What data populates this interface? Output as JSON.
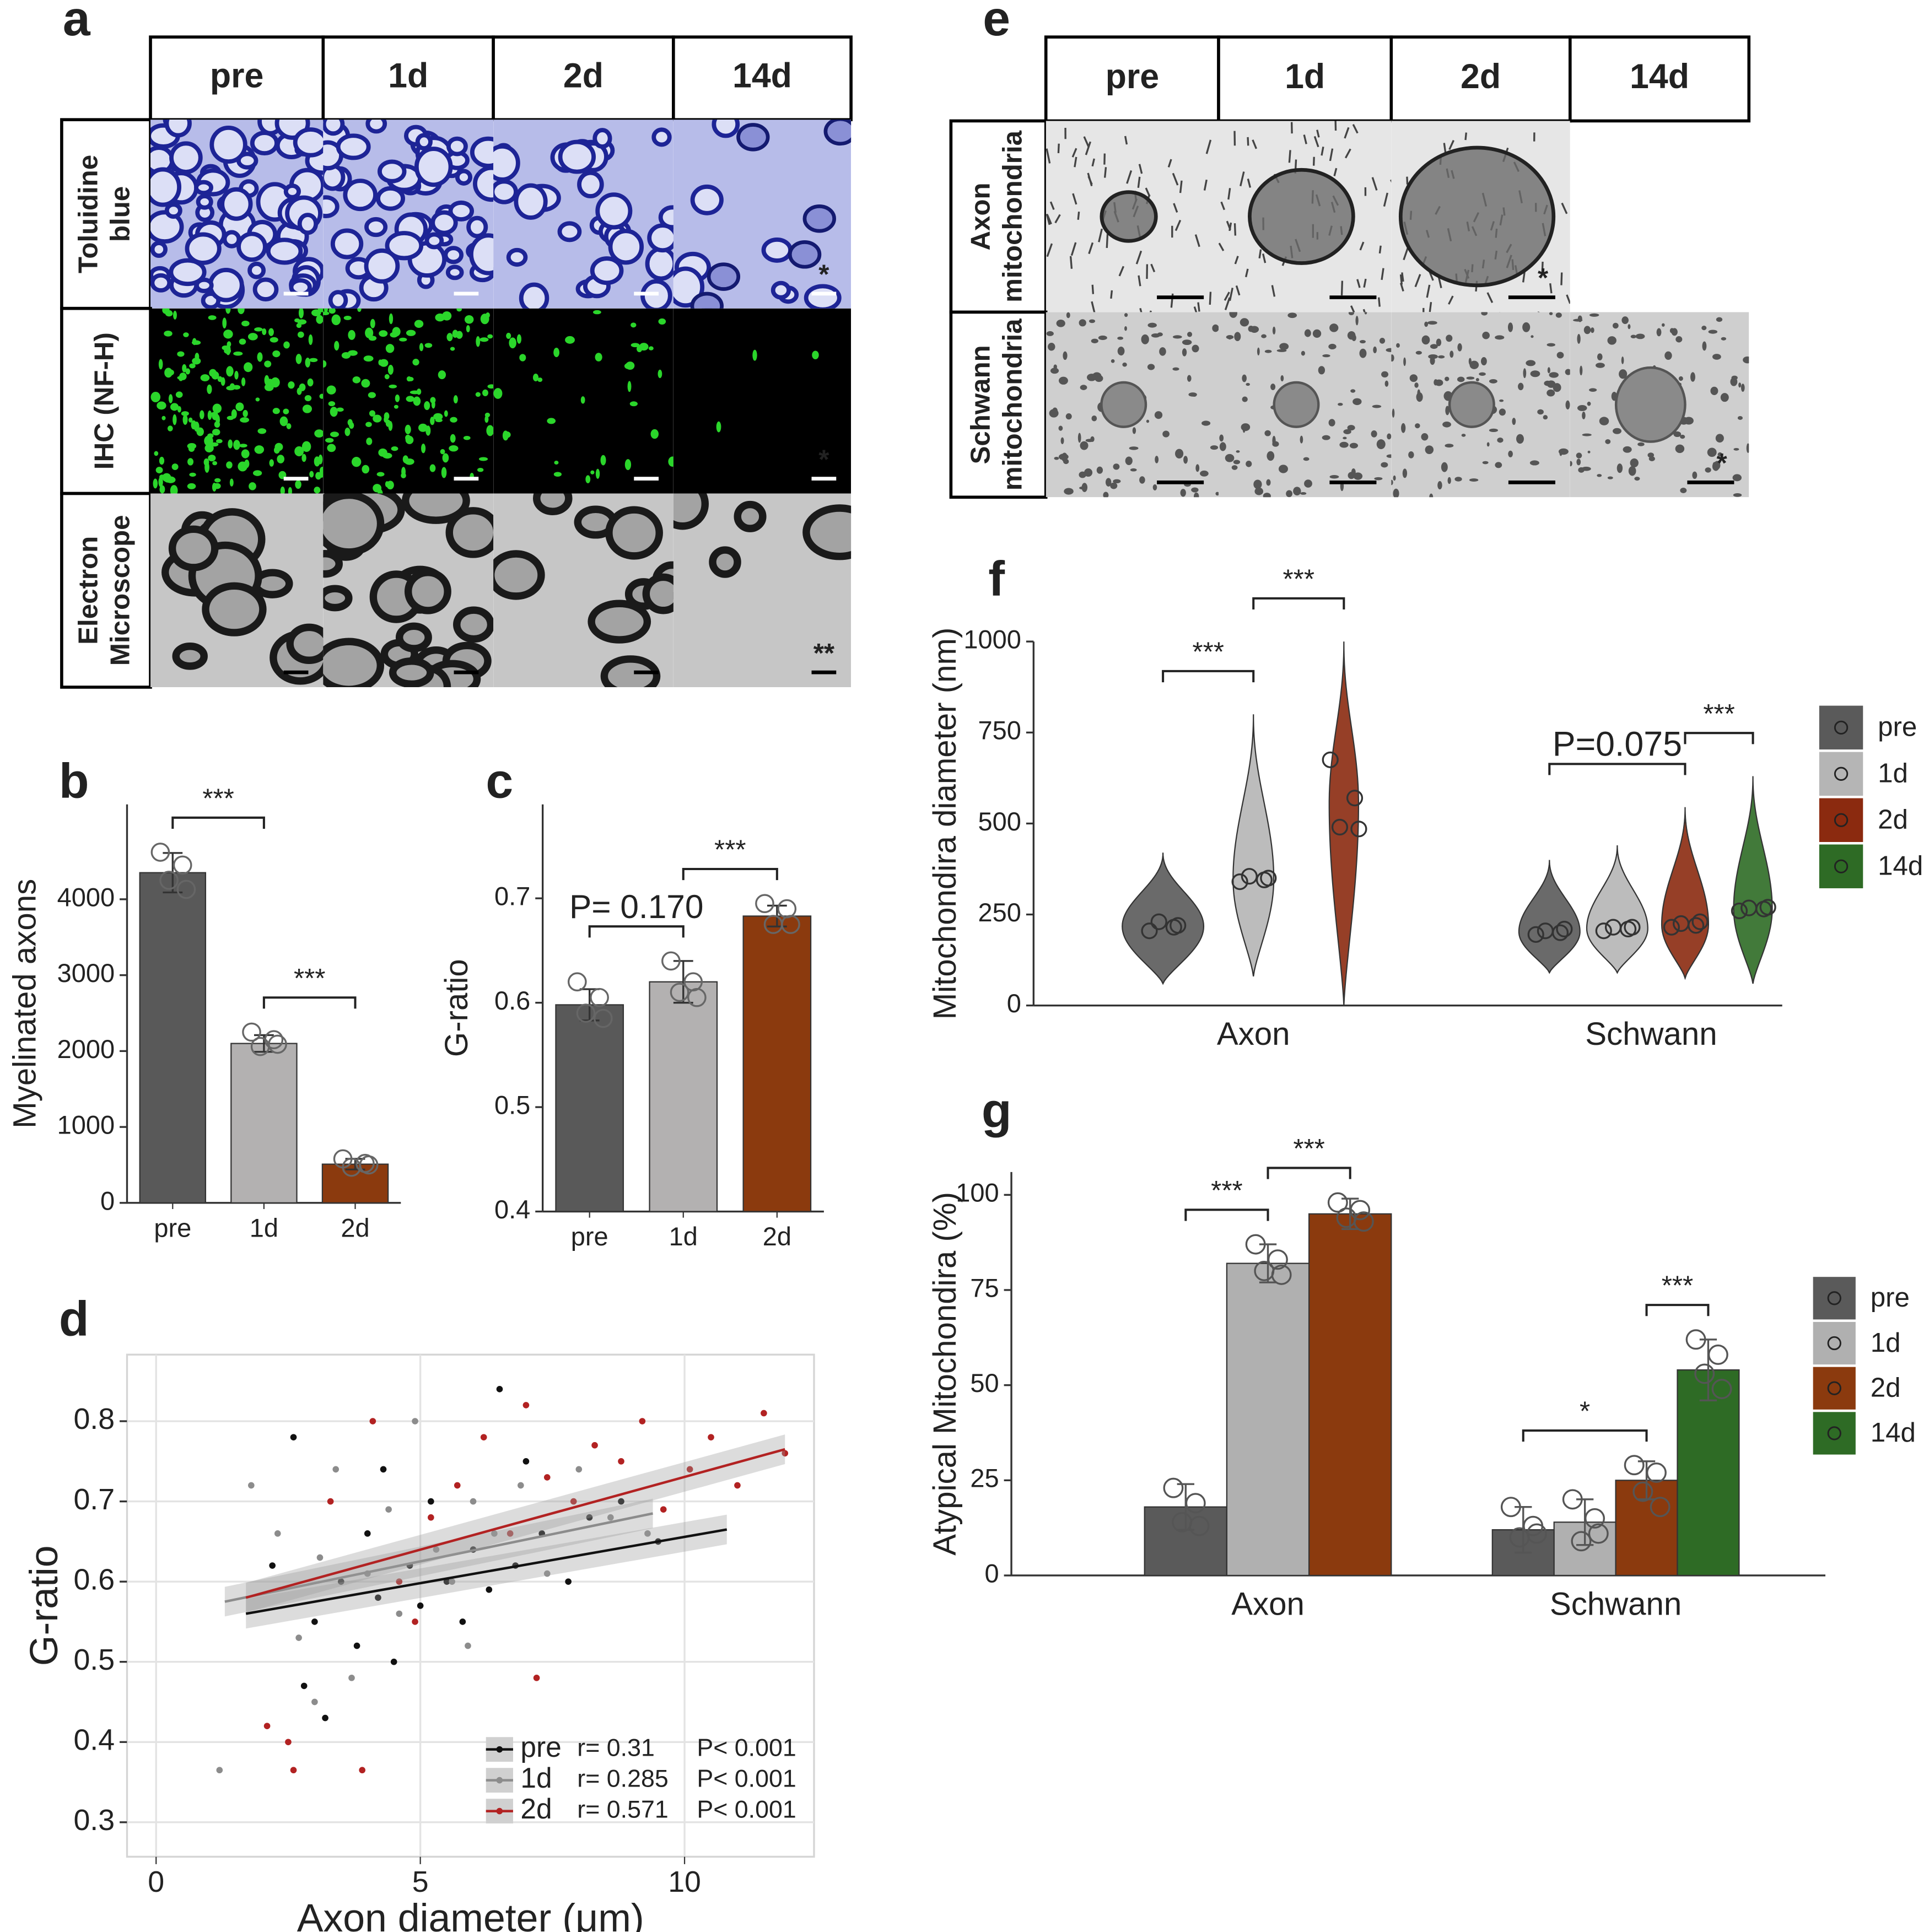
{
  "image_panels": [
    {
      "letter": "a",
      "columns": [
        "pre",
        "1d",
        "2d",
        "14d"
      ],
      "rows": [
        {
          "label": [
            "Toluidine",
            "blue"
          ],
          "marks": [
            null,
            null,
            null,
            "*"
          ]
        },
        {
          "label": [
            "IHC (NF-H)"
          ],
          "marks": [
            null,
            null,
            null,
            "*"
          ]
        },
        {
          "label": [
            "Electron",
            "Microscope"
          ],
          "marks": [
            null,
            null,
            null,
            "**"
          ]
        }
      ]
    },
    {
      "letter": "e",
      "columns": [
        "pre",
        "1d",
        "2d",
        "14d"
      ],
      "rows": [
        {
          "label": [
            "Axon",
            "mitochondria"
          ],
          "marks": [
            null,
            null,
            "*",
            null
          ]
        },
        {
          "label": [
            "Schwann",
            "mitochondria"
          ],
          "marks": [
            null,
            null,
            null,
            "*"
          ]
        }
      ]
    }
  ],
  "chart_data": [
    {
      "letter": "b",
      "type": "bar",
      "ylabel": "Myelinated axons",
      "categories": [
        "pre",
        "1d",
        "2d"
      ],
      "colors": [
        "#595959",
        "#b3b1b1",
        "#8b3a0e"
      ],
      "values": [
        4350,
        2100,
        510
      ],
      "errors": [
        260,
        110,
        70
      ],
      "points": [
        [
          4620,
          4450,
          4250,
          4130
        ],
        [
          2250,
          2150,
          2060,
          2090
        ],
        [
          580,
          520,
          470,
          500
        ]
      ],
      "ylim": [
        0,
        5250
      ],
      "yticks": [
        0,
        1000,
        2000,
        3000,
        4000
      ],
      "comparisons": [
        {
          "between": [
            "pre",
            "1d"
          ],
          "label": "***"
        },
        {
          "between": [
            "1d",
            "2d"
          ],
          "label": "***"
        }
      ]
    },
    {
      "letter": "c",
      "type": "bar",
      "ylabel": "G-ratio",
      "categories": [
        "pre",
        "1d",
        "2d"
      ],
      "colors": [
        "#595959",
        "#b3b1b1",
        "#8b3a0e"
      ],
      "values": [
        0.598,
        0.62,
        0.683
      ],
      "errors": [
        0.015,
        0.02,
        0.01
      ],
      "points": [
        [
          0.62,
          0.605,
          0.59,
          0.585
        ],
        [
          0.64,
          0.62,
          0.61,
          0.605
        ],
        [
          0.695,
          0.69,
          0.675,
          0.675
        ]
      ],
      "ylim": [
        0.4,
        0.79
      ],
      "yticks": [
        0.4,
        0.5,
        0.6,
        0.7
      ],
      "comparisons": [
        {
          "between": [
            "pre",
            "1d"
          ],
          "label": "P= 0.170"
        },
        {
          "between": [
            "1d",
            "2d"
          ],
          "label": "***"
        }
      ]
    },
    {
      "letter": "d",
      "type": "scatter",
      "xlabel": "Axon diameter (μm)",
      "ylabel": "G-ratio",
      "xlim": [
        -0.55,
        12.45
      ],
      "ylim": [
        0.257,
        0.883
      ],
      "xticks": [
        0,
        5,
        10
      ],
      "yticks": [
        0.3,
        0.4,
        0.5,
        0.6,
        0.7,
        0.8
      ],
      "grid": true,
      "series": [
        {
          "name": "pre",
          "color": "#111111",
          "r_label": "r= 0.31",
          "p_label": "P< 0.001",
          "x": [
            2.2,
            2.6,
            3.0,
            3.2,
            3.5,
            3.8,
            4.0,
            4.2,
            4.5,
            4.8,
            5.0,
            5.2,
            5.5,
            5.8,
            6.0,
            6.3,
            6.5,
            6.8,
            7.0,
            7.3,
            7.8,
            8.2,
            8.8,
            9.5,
            2.8,
            4.3
          ],
          "y": [
            0.62,
            0.78,
            0.55,
            0.43,
            0.6,
            0.52,
            0.66,
            0.58,
            0.5,
            0.62,
            0.57,
            0.7,
            0.6,
            0.55,
            0.64,
            0.59,
            0.84,
            0.62,
            0.75,
            0.66,
            0.6,
            0.68,
            0.7,
            0.65,
            0.47,
            0.74
          ],
          "fit_x": [
            1.7,
            10.8
          ],
          "fit_y": [
            0.56,
            0.665
          ]
        },
        {
          "name": "1d",
          "color": "#8c8c8c",
          "r_label": "r= 0.285",
          "p_label": "P< 0.001",
          "x": [
            1.2,
            1.8,
            2.3,
            2.7,
            3.1,
            3.4,
            3.7,
            4.0,
            4.4,
            4.6,
            4.9,
            5.3,
            5.6,
            6.0,
            6.4,
            6.9,
            7.4,
            8.0,
            8.6,
            9.3,
            3.0,
            5.9
          ],
          "y": [
            0.365,
            0.72,
            0.66,
            0.53,
            0.63,
            0.74,
            0.48,
            0.61,
            0.69,
            0.56,
            0.8,
            0.64,
            0.6,
            0.7,
            0.66,
            0.72,
            0.61,
            0.74,
            0.68,
            0.66,
            0.45,
            0.52
          ],
          "fit_x": [
            1.3,
            9.4
          ],
          "fit_y": [
            0.575,
            0.685
          ]
        },
        {
          "name": "2d",
          "color": "#b22222",
          "r_label": "r= 0.571",
          "p_label": "P< 0.001",
          "x": [
            2.1,
            2.5,
            2.6,
            3.3,
            4.1,
            4.6,
            5.2,
            5.7,
            6.2,
            6.7,
            7.0,
            7.4,
            7.9,
            8.3,
            8.8,
            9.2,
            9.6,
            10.1,
            10.5,
            11.0,
            11.5,
            11.9,
            7.2,
            4.9,
            3.9
          ],
          "y": [
            0.42,
            0.4,
            0.365,
            0.7,
            0.8,
            0.6,
            0.68,
            0.72,
            0.78,
            0.66,
            0.82,
            0.73,
            0.7,
            0.77,
            0.75,
            0.8,
            0.69,
            0.74,
            0.78,
            0.72,
            0.81,
            0.76,
            0.48,
            0.55,
            0.365
          ],
          "fit_x": [
            1.7,
            11.9
          ],
          "fit_y": [
            0.58,
            0.765
          ]
        }
      ]
    },
    {
      "letter": "f",
      "type": "violin",
      "ylabel": "Mitochondira diameter (nm)",
      "categories": [
        "Axon",
        "Schwann"
      ],
      "ylim": [
        0,
        1000
      ],
      "yticks": [
        0,
        250,
        500,
        750,
        1000
      ],
      "series": [
        {
          "name": "pre",
          "color": "#5a5a5a",
          "min": [
            60,
            90
          ],
          "max": [
            420,
            400
          ],
          "points": [
            [
              205,
              215,
              230,
              220
            ],
            [
              195,
              200,
              205,
              210
            ]
          ]
        },
        {
          "name": "1d",
          "color": "#b5b5b5",
          "min": [
            80,
            90
          ],
          "max": [
            800,
            440
          ],
          "points": [
            [
              340,
              345,
              355,
              350
            ],
            [
              205,
              210,
              215,
              215
            ]
          ]
        },
        {
          "name": "2d",
          "color": "#8b2a0f",
          "min": [
            0,
            75
          ],
          "max": [
            1000,
            545
          ],
          "points": [
            [
              675,
              570,
              490,
              485
            ],
            [
              215,
              220,
              225,
              230
            ]
          ]
        },
        {
          "name": "14d",
          "color": "#2e6b25",
          "min": [
            null,
            60
          ],
          "max": [
            null,
            630
          ],
          "points": [
            null,
            [
              260,
              265,
              268,
              270
            ]
          ]
        }
      ],
      "comparisons": [
        {
          "group": "Axon",
          "between": [
            "pre",
            "1d"
          ],
          "label": "***"
        },
        {
          "group": "Axon",
          "between": [
            "1d",
            "2d"
          ],
          "label": "***"
        },
        {
          "group": "Schwann",
          "between": [
            "pre",
            "2d"
          ],
          "label": "P=0.075"
        },
        {
          "group": "Schwann",
          "between": [
            "2d",
            "14d"
          ],
          "label": "***"
        }
      ]
    },
    {
      "letter": "g",
      "type": "grouped_bar",
      "ylabel": "Atypical Mitochondira (%)",
      "categories": [
        "Axon",
        "Schwann"
      ],
      "ylim": [
        0,
        106
      ],
      "yticks": [
        0,
        25,
        50,
        75,
        100
      ],
      "series": [
        {
          "name": "pre",
          "color": "#5a5a5a",
          "values": [
            18,
            12
          ],
          "errors": [
            6,
            6
          ],
          "points": [
            [
              23,
              19,
              14,
              13
            ],
            [
              18,
              13,
              10,
              11
            ]
          ]
        },
        {
          "name": "1d",
          "color": "#b0b0b0",
          "values": [
            82,
            14
          ],
          "errors": [
            5,
            6
          ],
          "points": [
            [
              87,
              83,
              80,
              79
            ],
            [
              20,
              15,
              9,
              11
            ]
          ]
        },
        {
          "name": "2d",
          "color": "#8b3a0e",
          "values": [
            95,
            25
          ],
          "errors": [
            4,
            5
          ],
          "points": [
            [
              98,
              96,
              94,
              93
            ],
            [
              29,
              27,
              22,
              18
            ]
          ]
        },
        {
          "name": "14d",
          "color": "#2e6b25",
          "values": [
            null,
            54
          ],
          "errors": [
            null,
            8
          ],
          "points": [
            null,
            [
              62,
              58,
              53,
              49
            ]
          ]
        }
      ],
      "comparisons": [
        {
          "group": "Axon",
          "between": [
            "pre",
            "1d"
          ],
          "label": "***"
        },
        {
          "group": "Axon",
          "between": [
            "1d",
            "2d"
          ],
          "label": "***"
        },
        {
          "group": "Schwann",
          "between": [
            "pre",
            "2d"
          ],
          "label": "*"
        },
        {
          "group": "Schwann",
          "between": [
            "2d",
            "14d"
          ],
          "label": "***"
        }
      ]
    }
  ]
}
